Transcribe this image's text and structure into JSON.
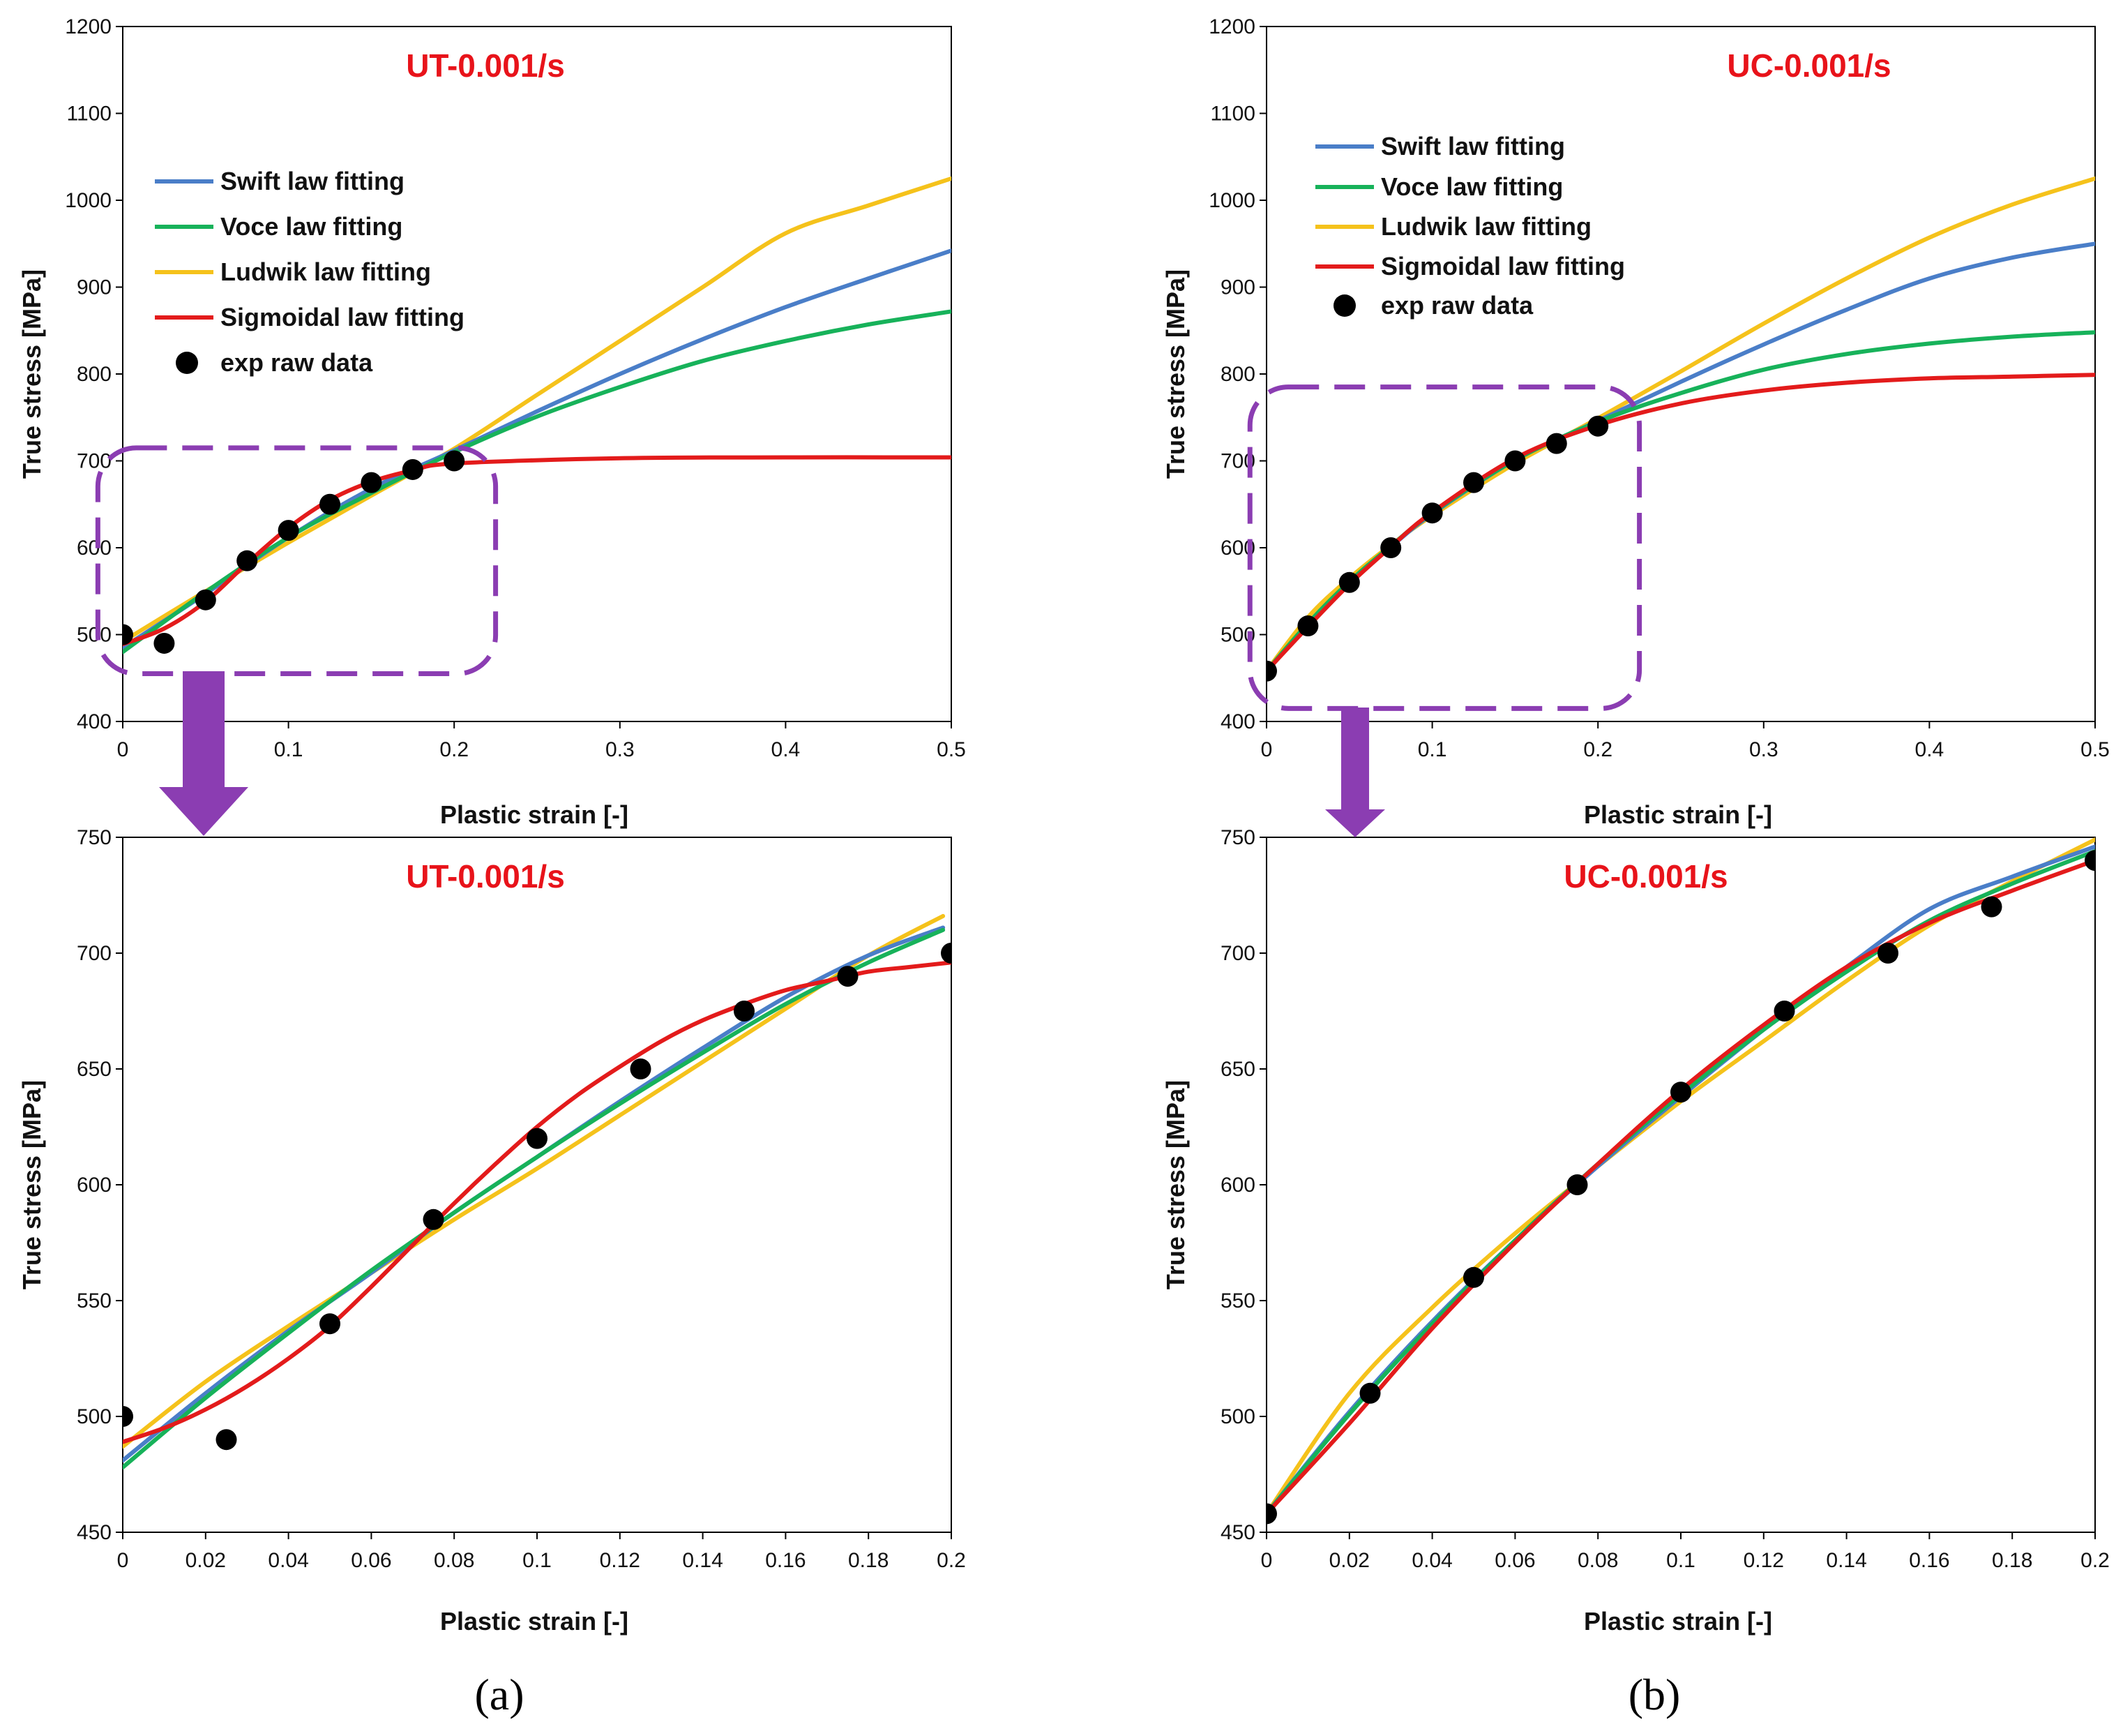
{
  "colors": {
    "swift": "#4A7EC8",
    "voce": "#17B25A",
    "ludwik": "#F5C21B",
    "sigmoidal": "#E31B1B",
    "exp": "#000000",
    "title": "#E8131A",
    "callout": "#8B3DB2"
  },
  "legend": {
    "swift": "Swift law fitting",
    "voce": "Voce law fitting",
    "ludwik": "Ludwik law fitting",
    "sigmoidal": "Sigmoidal law fitting",
    "exp": "exp raw data"
  },
  "panel_labels": {
    "a": "(a)",
    "b": "(b)"
  },
  "chart_data": [
    {
      "id": "ut-full",
      "type": "line",
      "title": "UT-0.001/s",
      "xlabel": "Plastic strain [-]",
      "ylabel": "True stress [MPa]",
      "xlim": [
        0,
        0.5
      ],
      "ylim": [
        400,
        1200
      ],
      "xticks": [
        0,
        0.1,
        0.2,
        0.3,
        0.4,
        0.5
      ],
      "xtick_labels": [
        "0",
        "0.1",
        "0.2",
        "0.3",
        "0.4",
        "0.5"
      ],
      "yticks": [
        400,
        500,
        600,
        700,
        800,
        900,
        1000,
        1100,
        1200
      ],
      "ytick_labels": [
        "400",
        "500",
        "600",
        "700",
        "800",
        "900",
        "1000",
        "1100",
        "1200"
      ],
      "legend": true,
      "series": [
        {
          "name": "Swift law fitting",
          "key": "swift",
          "x": [
            0,
            0.05,
            0.1,
            0.15,
            0.2,
            0.25,
            0.3,
            0.35,
            0.4,
            0.45,
            0.5
          ],
          "values": [
            485,
            547,
            612,
            668,
            712,
            757,
            800,
            840,
            877,
            910,
            942
          ]
        },
        {
          "name": "Voce law fitting",
          "key": "voce",
          "x": [
            0,
            0.05,
            0.1,
            0.15,
            0.2,
            0.25,
            0.3,
            0.35,
            0.4,
            0.45,
            0.5
          ],
          "values": [
            480,
            549,
            612,
            663,
            710,
            751,
            785,
            815,
            838,
            857,
            872
          ]
        },
        {
          "name": "Ludwik law fitting",
          "key": "ludwik",
          "x": [
            0,
            0.05,
            0.1,
            0.15,
            0.2,
            0.25,
            0.3,
            0.35,
            0.4,
            0.45,
            0.5
          ],
          "values": [
            492,
            550,
            606,
            660,
            714,
            776,
            838,
            900,
            962,
            994,
            1025
          ]
        },
        {
          "name": "Sigmoidal law fitting",
          "key": "sigmoidal",
          "x": [
            0,
            0.025,
            0.05,
            0.075,
            0.1,
            0.125,
            0.15,
            0.175,
            0.2,
            0.3,
            0.4,
            0.5
          ],
          "values": [
            489,
            507,
            538,
            582,
            623,
            655,
            676,
            689,
            697,
            703,
            704,
            704
          ]
        },
        {
          "name": "exp raw data",
          "key": "exp",
          "kind": "scatter",
          "x": [
            0,
            0.025,
            0.05,
            0.075,
            0.1,
            0.125,
            0.15,
            0.175,
            0.2
          ],
          "values": [
            500,
            490,
            540,
            585,
            620,
            650,
            675,
            690,
            700
          ]
        }
      ],
      "callout": {
        "x0": -0.015,
        "x1": 0.225,
        "y0": 455,
        "y1": 715
      }
    },
    {
      "id": "uc-full",
      "type": "line",
      "title": "UC-0.001/s",
      "xlabel": "Plastic strain [-]",
      "ylabel": "True stress [MPa]",
      "xlim": [
        0,
        0.5
      ],
      "ylim": [
        400,
        1200
      ],
      "xticks": [
        0,
        0.1,
        0.2,
        0.3,
        0.4,
        0.5
      ],
      "xtick_labels": [
        "0",
        "0.1",
        "0.2",
        "0.3",
        "0.4",
        "0.5"
      ],
      "yticks": [
        400,
        500,
        600,
        700,
        800,
        900,
        1000,
        1100,
        1200
      ],
      "ytick_labels": [
        "400",
        "500",
        "600",
        "700",
        "800",
        "900",
        "1000",
        "1100",
        "1200"
      ],
      "legend": true,
      "series": [
        {
          "name": "Swift law fitting",
          "key": "swift",
          "x": [
            0,
            0.025,
            0.05,
            0.075,
            0.1,
            0.15,
            0.2,
            0.25,
            0.3,
            0.35,
            0.4,
            0.45,
            0.5
          ],
          "values": [
            458,
            512,
            560,
            601,
            639,
            701,
            746,
            791,
            834,
            874,
            910,
            934,
            950
          ]
        },
        {
          "name": "Voce law fitting",
          "key": "voce",
          "x": [
            0,
            0.025,
            0.05,
            0.075,
            0.1,
            0.15,
            0.2,
            0.25,
            0.3,
            0.35,
            0.4,
            0.45,
            0.5
          ],
          "values": [
            458,
            513,
            561,
            602,
            640,
            701,
            745,
            778,
            805,
            823,
            835,
            843,
            848
          ]
        },
        {
          "name": "Ludwik law fitting",
          "key": "ludwik",
          "x": [
            0,
            0.025,
            0.05,
            0.075,
            0.1,
            0.15,
            0.2,
            0.25,
            0.3,
            0.35,
            0.4,
            0.45,
            0.5
          ],
          "values": [
            458,
            520,
            565,
            603,
            637,
            697,
            749,
            803,
            858,
            910,
            957,
            995,
            1025
          ]
        },
        {
          "name": "Sigmoidal law fitting",
          "key": "sigmoidal",
          "x": [
            0,
            0.025,
            0.05,
            0.075,
            0.1,
            0.15,
            0.2,
            0.25,
            0.3,
            0.35,
            0.4,
            0.45,
            0.5
          ],
          "values": [
            458,
            509,
            558,
            601,
            641,
            703,
            741,
            766,
            781,
            790,
            795,
            797,
            799
          ]
        },
        {
          "name": "exp raw data",
          "key": "exp",
          "kind": "scatter",
          "x": [
            0,
            0.025,
            0.05,
            0.075,
            0.1,
            0.125,
            0.15,
            0.175,
            0.2
          ],
          "values": [
            458,
            510,
            560,
            600,
            640,
            675,
            700,
            720,
            740
          ]
        }
      ],
      "callout": {
        "x0": -0.01,
        "x1": 0.225,
        "y0": 415,
        "y1": 785
      }
    },
    {
      "id": "ut-zoom",
      "type": "line",
      "title": "UT-0.001/s",
      "xlabel": "Plastic strain [-]",
      "ylabel": "True stress [MPa]",
      "xlim": [
        0,
        0.2
      ],
      "ylim": [
        450,
        750
      ],
      "xticks": [
        0,
        0.02,
        0.04,
        0.06,
        0.08,
        0.1,
        0.12,
        0.14,
        0.16,
        0.18,
        0.2
      ],
      "xtick_labels": [
        "0",
        "0.02",
        "0.04",
        "0.06",
        "0.08",
        "0.1",
        "0.12",
        "0.14",
        "0.16",
        "0.18",
        "0.2"
      ],
      "yticks": [
        450,
        500,
        550,
        600,
        650,
        700,
        750
      ],
      "ytick_labels": [
        "450",
        "500",
        "550",
        "600",
        "650",
        "700",
        "750"
      ],
      "legend": false,
      "series": [
        {
          "name": "Swift law fitting",
          "key": "swift",
          "x": [
            0,
            0.02,
            0.04,
            0.06,
            0.08,
            0.1,
            0.12,
            0.14,
            0.16,
            0.18,
            0.198
          ],
          "values": [
            481,
            510,
            537,
            562,
            588,
            612,
            636,
            659,
            681,
            699,
            711
          ]
        },
        {
          "name": "Voce law fitting",
          "key": "voce",
          "x": [
            0,
            0.02,
            0.04,
            0.06,
            0.08,
            0.1,
            0.12,
            0.14,
            0.16,
            0.18,
            0.198
          ],
          "values": [
            478,
            508,
            536,
            563,
            588,
            612,
            635,
            657,
            678,
            696,
            710
          ]
        },
        {
          "name": "Ludwik law fitting",
          "key": "ludwik",
          "x": [
            0,
            0.02,
            0.04,
            0.06,
            0.08,
            0.1,
            0.12,
            0.14,
            0.16,
            0.18,
            0.198
          ],
          "values": [
            487,
            515,
            539,
            562,
            585,
            607,
            630,
            653,
            676,
            699,
            716
          ]
        },
        {
          "name": "Sigmoidal law fitting",
          "key": "sigmoidal",
          "x": [
            0,
            0.01,
            0.02,
            0.03,
            0.04,
            0.05,
            0.06,
            0.07,
            0.08,
            0.09,
            0.1,
            0.11,
            0.12,
            0.13,
            0.14,
            0.15,
            0.16,
            0.17,
            0.18,
            0.19,
            0.2
          ],
          "values": [
            489,
            495,
            503,
            513,
            525,
            539,
            556,
            574,
            592,
            609,
            625,
            639,
            651,
            662,
            671,
            678,
            684,
            688,
            692,
            694,
            696
          ]
        },
        {
          "name": "exp raw data",
          "key": "exp",
          "kind": "scatter",
          "x": [
            0,
            0.025,
            0.05,
            0.075,
            0.1,
            0.125,
            0.15,
            0.175,
            0.2
          ],
          "values": [
            500,
            490,
            540,
            585,
            620,
            650,
            675,
            690,
            700
          ]
        }
      ]
    },
    {
      "id": "uc-zoom",
      "type": "line",
      "title": "UC-0.001/s",
      "xlabel": "Plastic strain [-]",
      "ylabel": "True stress [MPa]",
      "xlim": [
        0,
        0.2
      ],
      "ylim": [
        450,
        750
      ],
      "xticks": [
        0,
        0.02,
        0.04,
        0.06,
        0.08,
        0.1,
        0.12,
        0.14,
        0.16,
        0.18,
        0.2
      ],
      "xtick_labels": [
        "0",
        "0.02",
        "0.04",
        "0.06",
        "0.08",
        "0.1",
        "0.12",
        "0.14",
        "0.16",
        "0.18",
        "0.2"
      ],
      "yticks": [
        450,
        500,
        550,
        600,
        650,
        700,
        750
      ],
      "ytick_labels": [
        "450",
        "500",
        "550",
        "600",
        "650",
        "700",
        "750"
      ],
      "legend": false,
      "series": [
        {
          "name": "Swift law fitting",
          "key": "swift",
          "x": [
            0,
            0.02,
            0.04,
            0.06,
            0.08,
            0.1,
            0.12,
            0.14,
            0.16,
            0.18,
            0.2
          ],
          "values": [
            458,
            502,
            541,
            576,
            608,
            638,
            667,
            694,
            719,
            733,
            746
          ]
        },
        {
          "name": "Voce law fitting",
          "key": "voce",
          "x": [
            0,
            0.02,
            0.04,
            0.06,
            0.08,
            0.1,
            0.12,
            0.14,
            0.16,
            0.18,
            0.2
          ],
          "values": [
            458,
            501,
            540,
            576,
            609,
            639,
            667,
            692,
            714,
            730,
            744
          ]
        },
        {
          "name": "Ludwik law fitting",
          "key": "ludwik",
          "x": [
            0,
            0.02,
            0.04,
            0.06,
            0.08,
            0.1,
            0.12,
            0.14,
            0.16,
            0.18,
            0.2
          ],
          "values": [
            458,
            510,
            547,
            579,
            608,
            636,
            662,
            688,
            712,
            731,
            749
          ]
        },
        {
          "name": "Sigmoidal law fitting",
          "key": "sigmoidal",
          "x": [
            0,
            0.02,
            0.04,
            0.06,
            0.08,
            0.1,
            0.12,
            0.14,
            0.16,
            0.18,
            0.2
          ],
          "values": [
            458,
            497,
            538,
            575,
            609,
            641,
            669,
            694,
            713,
            727,
            740
          ]
        },
        {
          "name": "exp raw data",
          "key": "exp",
          "kind": "scatter",
          "x": [
            0,
            0.025,
            0.05,
            0.075,
            0.1,
            0.125,
            0.15,
            0.175,
            0.2
          ],
          "values": [
            458,
            510,
            560,
            600,
            640,
            675,
            700,
            720,
            740
          ]
        }
      ]
    }
  ]
}
